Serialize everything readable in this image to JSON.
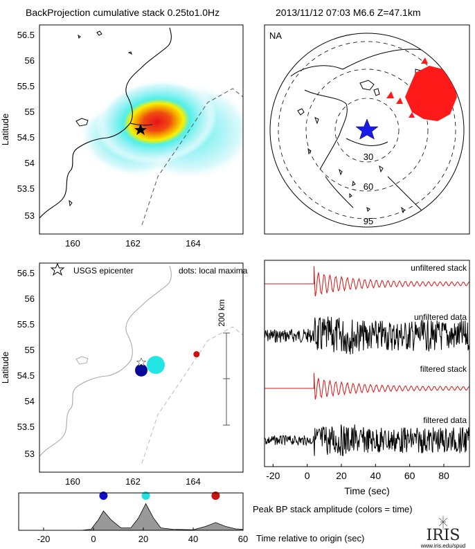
{
  "header": {
    "title": "BackProjection cumulative stack 0.25to1.0Hz",
    "event": "2013/11/12 07:03   M6.6   Z=47.1km"
  },
  "map_labels": {
    "ylabel": "Latitude",
    "lat_ticks": [
      "56.5",
      "56",
      "55.5",
      "55",
      "54.5",
      "54",
      "53.5",
      "53"
    ],
    "lon_ticks": [
      "160",
      "162",
      "164"
    ]
  },
  "globe": {
    "network": "NA",
    "distance_labels": [
      "30",
      "60",
      "95"
    ]
  },
  "maxima_map": {
    "legend_epicenter": "USGS epicenter",
    "legend_dots": "dots: local maxima",
    "scale_label": "200 km"
  },
  "traces": {
    "labels": [
      "unfiltered stack",
      "unfiltered data",
      "filtered stack",
      "filtered data"
    ],
    "x_ticks": [
      "-20",
      "0",
      "20",
      "40",
      "60",
      "80"
    ],
    "xlabel": "Time (sec)"
  },
  "amplitude": {
    "x_ticks": [
      "-20",
      "0",
      "20",
      "40",
      "60"
    ],
    "label": "Peak BP stack amplitude (colors = time)",
    "xlabel": "Time relative to origin (sec)"
  },
  "logo": {
    "name": "IRIS",
    "url": "www.iris.edu/spud"
  },
  "chart_data": [
    {
      "type": "heatmap",
      "panel": "cumulative stack map",
      "x_range": [
        158.8,
        165.8
      ],
      "y_range": [
        52.8,
        56.7
      ],
      "epicenter": {
        "lon": 162.3,
        "lat": 54.7
      },
      "peak_center": {
        "lon": 162.6,
        "lat": 54.8
      }
    },
    {
      "type": "scatter",
      "panel": "local maxima",
      "x_range": [
        158.8,
        165.8
      ],
      "y_range": [
        52.8,
        56.7
      ],
      "points": [
        {
          "lon": 162.3,
          "lat": 54.7,
          "time": 4,
          "color": "#0a0a9a",
          "size": "medium"
        },
        {
          "lon": 162.8,
          "lat": 54.8,
          "time": 21,
          "color": "#22e6e6",
          "size": "large"
        },
        {
          "lon": 164.2,
          "lat": 55.0,
          "time": 49,
          "color": "#cc1111",
          "size": "small"
        }
      ],
      "scale_km": 200
    },
    {
      "type": "line",
      "panel": "peak BP stack amplitude",
      "x_range": [
        -30,
        60
      ],
      "x": [
        -30,
        -5,
        -1,
        2,
        4,
        7,
        11,
        15,
        18,
        21,
        24,
        27,
        32,
        40,
        45,
        49,
        53,
        57,
        60
      ],
      "y": [
        0,
        0,
        0.02,
        0.22,
        0.4,
        0.22,
        0.05,
        0.05,
        0.25,
        0.55,
        0.26,
        0.05,
        0.02,
        0.01,
        0.08,
        0.16,
        0.08,
        0.03,
        0.02
      ],
      "dots": [
        {
          "time": 4,
          "color": "#1010c8"
        },
        {
          "time": 21,
          "color": "#22e0e0"
        },
        {
          "time": 49,
          "color": "#cc1111"
        }
      ]
    },
    {
      "type": "line",
      "panel": "seismic traces",
      "x_range": [
        -25,
        95
      ],
      "series": [
        {
          "name": "unfiltered stack",
          "color": "#e01010",
          "onset": 4
        },
        {
          "name": "unfiltered data",
          "color": "#000000",
          "onset": 4
        },
        {
          "name": "filtered stack",
          "color": "#e01010",
          "onset": 4
        },
        {
          "name": "filtered data",
          "color": "#000000",
          "onset": 4
        }
      ]
    }
  ]
}
